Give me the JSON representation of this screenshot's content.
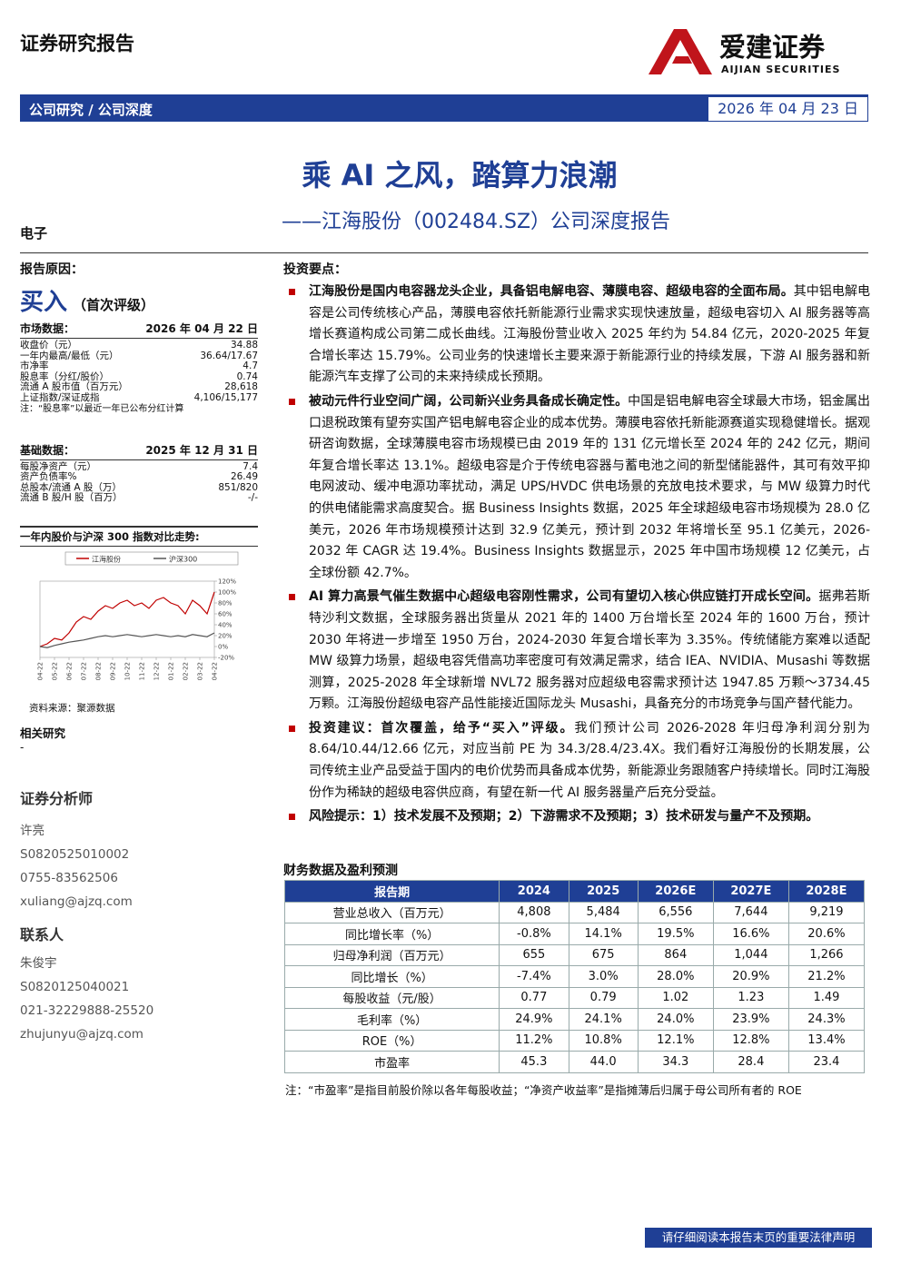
{
  "header": {
    "title": "证券研究报告",
    "brand_cn": "爱建证券",
    "brand_en": "AIJIAN SECURITIES"
  },
  "bar": {
    "category": "公司研究 / 公司深度",
    "date": "2026 年 04 月 23 日"
  },
  "title": "乘 AI 之风，踏算力浪潮",
  "subtitle": "——江海股份（002484.SZ）公司深度报告",
  "sector": "电子",
  "left": {
    "reason": "报告原因：",
    "rating": "买入",
    "rating_note": "（首次评级）",
    "market": {
      "label": "市场数据：",
      "date": "2026 年 04 月 22 日",
      "rows": [
        [
          "收盘价（元）",
          "34.88"
        ],
        [
          "一年内最高/最低（元）",
          "36.64/17.67"
        ],
        [
          "市净率",
          "4.7"
        ],
        [
          "股息率（分红/股价）",
          "0.74"
        ],
        [
          "流通 A 股市值（百万元）",
          "28,618"
        ],
        [
          "上证指数/深证成指",
          "4,106/15,177"
        ]
      ],
      "note": "注：“股息率”以最近一年已公布分红计算"
    },
    "basic": {
      "label": "基础数据：",
      "date": "2025 年 12 月 31 日",
      "rows": [
        [
          "每股净资产（元）",
          "7.4"
        ],
        [
          "资产负债率%",
          "26.49"
        ],
        [
          "总股本/流通 A 股（万）",
          "851/820"
        ],
        [
          "流通 B 股/H 股（百万）",
          "-/-"
        ]
      ]
    },
    "chart_title": "一年内股价与沪深 300 指数对比走势:",
    "chart": {
      "type": "line",
      "categories": [
        "04-22",
        null,
        "05-22",
        null,
        "06-22",
        null,
        "07-22",
        null,
        "08-22",
        null,
        "09-22",
        null,
        "10-22",
        null,
        "11-22",
        null,
        "12-22",
        null,
        "01-22",
        null,
        "02-22",
        null,
        "03-22",
        null,
        "04-22"
      ],
      "series": [
        {
          "name": "江海股份",
          "color": "#c00000",
          "values": [
            0,
            5,
            15,
            12,
            25,
            45,
            55,
            50,
            65,
            75,
            70,
            80,
            85,
            75,
            80,
            70,
            85,
            90,
            80,
            75,
            60,
            85,
            75,
            60,
            100
          ]
        },
        {
          "name": "沪深300",
          "color": "#555555",
          "values": [
            0,
            -2,
            2,
            5,
            8,
            10,
            12,
            15,
            18,
            20,
            18,
            20,
            22,
            20,
            18,
            20,
            22,
            20,
            18,
            20,
            18,
            22,
            20,
            18,
            25
          ]
        }
      ],
      "ylim": [
        -20,
        120
      ],
      "yticks": [
        {
          "value": -20,
          "label": "-20%"
        },
        {
          "value": 0,
          "label": "0%"
        },
        {
          "value": 20,
          "label": "20%"
        },
        {
          "value": 40,
          "label": "40%"
        },
        {
          "value": 60,
          "label": "60%"
        },
        {
          "value": 80,
          "label": "80%"
        },
        {
          "value": 100,
          "label": "100%"
        },
        {
          "value": 120,
          "label": "120%"
        }
      ],
      "grid": false
    },
    "source": "资料来源：聚源数据",
    "related": "相关研究",
    "related_item": "-",
    "analyst": {
      "heading": "证券分析师",
      "items": [
        "许亮",
        "S0820525010002",
        "0755-83562506",
        "xuliang@ajzq.com"
      ]
    },
    "contact": {
      "heading": "联系人",
      "items": [
        "朱俊宇",
        "S0820125040021",
        "021-32229888-25520",
        "zhujunyu@ajzq.com"
      ]
    }
  },
  "points": {
    "heading": "投资要点：",
    "items": [
      {
        "bold": "江海股份是国内电容器龙头企业，具备铝电解电容、薄膜电容、超级电容的全面布局。",
        "text": "其中铝电解电容是公司传统核心产品，薄膜电容依托新能源行业需求实现快速放量，超级电容切入 AI 服务器等高增长赛道构成公司第二成长曲线。江海股份营业收入 2025 年约为 54.84 亿元，2020-2025 年复合增长率达 15.79%。公司业务的快速增长主要来源于新能源行业的持续发展，下游 AI 服务器和新能源汽车支撑了公司的未来持续成长预期。"
      },
      {
        "bold": "被动元件行业空间广阔，公司新兴业务具备成长确定性。",
        "text": "中国是铝电解电容全球最大市场，铝金属出口退税政策有望夯实国产铝电解电容企业的成本优势。薄膜电容依托新能源赛道实现稳健增长。据观研咨询数据，全球薄膜电容市场规模已由 2019 年的 131 亿元增长至 2024 年的 242 亿元，期间年复合增长率达 13.1%。超级电容是介于传统电容器与蓄电池之间的新型储能器件，其可有效平抑电网波动、缓冲电源功率扰动，满足 UPS/HVDC 供电场景的充放电技术要求，与 MW 级算力时代的供电储能需求高度契合。据 Business Insights 数据，2025 年全球超级电容市场规模为 28.0 亿美元，2026 年市场规模预计达到 32.9 亿美元，预计到 2032 年将增长至 95.1 亿美元，2026-2032 年 CAGR 达 19.4%。Business Insights 数据显示，2025 年中国市场规模 12 亿美元，占全球份额 42.7%。"
      },
      {
        "bold": "AI 算力高景气催生数据中心超级电容刚性需求，公司有望切入核心供应链打开成长空间。",
        "text": "据弗若斯特沙利文数据，全球服务器出货量从 2021 年的 1400 万台增长至 2024 年的 1600 万台，预计 2030 年将进一步增至 1950 万台，2024-2030 年复合增长率为 3.35%。传统储能方案难以适配 MW 级算力场景，超级电容凭借高功率密度可有效满足需求，结合 IEA、NVIDIA、Musashi 等数据测算，2025-2028 年全球新增 NVL72 服务器对应超级电容需求预计达 1947.85 万颗～3734.45 万颗。江海股份超级电容产品性能接近国际龙头 Musashi，具备充分的市场竞争与国产替代能力。"
      },
      {
        "bold": "投资建议：首次覆盖，给予“买入”评级。",
        "text": "我们预计公司 2026-2028 年归母净利润分别为 8.64/10.44/12.66 亿元，对应当前 PE 为 34.3/28.4/23.4X。我们看好江海股份的长期发展，公司传统主业产品受益于国内的电价优势而具备成本优势，新能源业务跟随客户持续增长。同时江海股份作为稀缺的超级电容供应商，有望在新一代 AI 服务器量产后充分受益。"
      },
      {
        "bold": "风险提示：1）技术发展不及预期；2）下游需求不及预期；3）技术研发与量产不及预期。"
      }
    ]
  },
  "table": {
    "title": "财务数据及盈利预测",
    "header": [
      "报告期",
      "2024",
      "2025",
      "2026E",
      "2027E",
      "2028E"
    ],
    "rows": [
      [
        "营业总收入（百万元）",
        "4,808",
        "5,484",
        "6,556",
        "7,644",
        "9,219"
      ],
      [
        "同比增长率（%）",
        "-0.8%",
        "14.1%",
        "19.5%",
        "16.6%",
        "20.6%"
      ],
      [
        "归母净利润（百万元）",
        "655",
        "675",
        "864",
        "1,044",
        "1,266"
      ],
      [
        "同比增长（%）",
        "-7.4%",
        "3.0%",
        "28.0%",
        "20.9%",
        "21.2%"
      ],
      [
        "每股收益（元/股）",
        "0.77",
        "0.79",
        "1.02",
        "1.23",
        "1.49"
      ],
      [
        "毛利率（%）",
        "24.9%",
        "24.1%",
        "24.0%",
        "23.9%",
        "24.3%"
      ],
      [
        "ROE（%）",
        "11.2%",
        "10.8%",
        "12.1%",
        "12.8%",
        "13.4%"
      ],
      [
        "市盈率",
        "45.3",
        "44.0",
        "34.3",
        "28.4",
        "23.4"
      ]
    ],
    "note": "注：“市盈率”是指目前股价除以各年每股收益；“净资产收益率”是指摊薄后归属于母公司所有者的 ROE"
  },
  "footer": "请仔细阅读本报告末页的重要法律声明"
}
